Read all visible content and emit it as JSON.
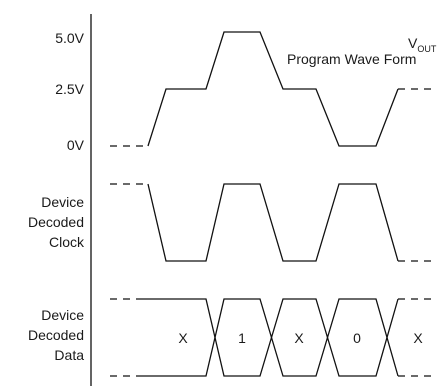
{
  "voltage_labels": {
    "v5": "5.0V",
    "v25": "2.5V",
    "v0": "0V"
  },
  "vout": {
    "main": "V",
    "sub": "OUT"
  },
  "program_wave_label": "Program Wave Form",
  "clock_label": [
    "Device",
    "Decoded",
    "Clock"
  ],
  "data_label": [
    "Device",
    "Decoded",
    "Data"
  ],
  "data_symbols": [
    "X",
    "1",
    "X",
    "0",
    "X"
  ]
}
